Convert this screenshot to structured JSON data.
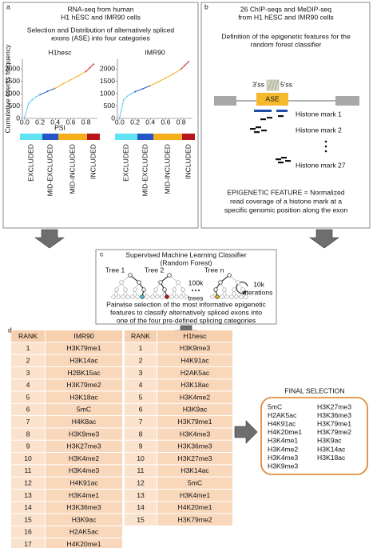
{
  "panel_a": {
    "label": "a",
    "title_lines": [
      "RNA-seq from human",
      "H1 hESC and IMR90 cells"
    ],
    "subtitle_lines": [
      "Selection and Distribution of alternatively spliced",
      "exons (ASE) into four categories"
    ],
    "categories": [
      {
        "name": "EXCLUDED",
        "color": "#5fe3f2"
      },
      {
        "name": "MID-EXCLUDED",
        "color": "#2357c8"
      },
      {
        "name": "MID-INCLUDED",
        "color": "#f5ae1c"
      },
      {
        "name": "INCLUDED",
        "color": "#b8141c"
      }
    ],
    "charts": [
      {
        "type": "line",
        "title": "H1hesc",
        "ylabel": "Cumulative events frequency",
        "xlabel": "PSI",
        "xlim": [
          -0.03,
          0.95
        ],
        "ylim": [
          0,
          2400
        ],
        "xticks": [
          {
            "value": 0,
            "label": "0.0"
          },
          {
            "value": 0.2,
            "label": "0.2"
          },
          {
            "value": 0.4,
            "label": "0.4"
          },
          {
            "value": 0.6,
            "label": "0.6"
          },
          {
            "value": 0.8,
            "label": "0.8"
          }
        ],
        "yticks": [
          0,
          500,
          1000,
          1500,
          2000
        ],
        "series": [
          {
            "color": "#5bc8f0",
            "x": [
              0,
              0.05,
              0.1,
              0.15,
              0.2
            ],
            "values": [
              50,
              600,
              760,
              880,
              960
            ]
          },
          {
            "color": "#2357c8",
            "x": [
              0.2,
              0.3,
              0.4
            ],
            "values": [
              960,
              1100,
              1220
            ]
          },
          {
            "color": "#f5ae1c",
            "x": [
              0.4,
              0.5,
              0.6,
              0.7,
              0.8
            ],
            "values": [
              1220,
              1400,
              1560,
              1720,
              1900
            ]
          },
          {
            "color": "#d2302c",
            "x": [
              0.8,
              0.85,
              0.9
            ],
            "values": [
              1900,
              2050,
              2200
            ]
          }
        ]
      },
      {
        "type": "line",
        "title": "IMR90",
        "xlim": [
          -0.03,
          0.95
        ],
        "ylim": [
          0,
          2400
        ],
        "xticks": [
          {
            "value": 0,
            "label": "0.0"
          },
          {
            "value": 0.2,
            "label": "0.2"
          },
          {
            "value": 0.4,
            "label": "0.4"
          },
          {
            "value": 0.6,
            "label": "0.6"
          },
          {
            "value": 0.8,
            "label": "0.8"
          }
        ],
        "yticks": [
          0,
          500,
          1000,
          1500,
          2000
        ],
        "series": [
          {
            "color": "#5bc8f0",
            "x": [
              0,
              0.05,
              0.1,
              0.15,
              0.2
            ],
            "values": [
              50,
              750,
              900,
              1000,
              1080
            ]
          },
          {
            "color": "#2357c8",
            "x": [
              0.2,
              0.3,
              0.4
            ],
            "values": [
              1080,
              1200,
              1330
            ]
          },
          {
            "color": "#f5ae1c",
            "x": [
              0.4,
              0.5,
              0.6,
              0.7,
              0.8
            ],
            "values": [
              1330,
              1480,
              1630,
              1800,
              2000
            ]
          },
          {
            "color": "#d2302c",
            "x": [
              0.8,
              0.85,
              0.9
            ],
            "values": [
              2000,
              2150,
              2300
            ]
          }
        ]
      }
    ]
  },
  "panel_b": {
    "label": "b",
    "title_lines": [
      "26 ChIP-seqs and MeDIP-seq",
      "from H1 hESC and IMR90 cells"
    ],
    "definition_lines": [
      "Definition of the epigenetic features for the",
      "random forest classifier"
    ],
    "splice_3": "3'ss",
    "splice_5": "5'ss",
    "exon": "ASE",
    "marks": [
      "Histone mark 1",
      "Histone mark 2",
      "Histone mark 27"
    ],
    "feature_lines": [
      "EPIGENETIC FEATURE = Normalized",
      "read coverage of a histone mark at a",
      "specific genomic position along the exon"
    ]
  },
  "panel_c": {
    "label": "c",
    "title_lines": [
      "Supervised Machine Learning Classifier",
      "(Random Forest)"
    ],
    "trees": [
      "Tree 1",
      "Tree 2",
      "Tree n"
    ],
    "tree_count": "100k",
    "tree_word": "trees",
    "iter_count": "10k",
    "iter_word": "iterations",
    "description_lines": [
      "Pairwise selection of the most informative epigenetic",
      "features to classify alternatively spliced exons into",
      "one of the four pre-defined splicing categories"
    ]
  },
  "panel_d": {
    "label": "d",
    "tables": [
      {
        "headers": [
          "RANK",
          "IMR90"
        ],
        "rows": [
          [
            1,
            "H3K79me1"
          ],
          [
            2,
            "H3K14ac"
          ],
          [
            3,
            "H2BK15ac"
          ],
          [
            4,
            "H3K79me2"
          ],
          [
            5,
            "H3K18ac"
          ],
          [
            6,
            "5mC"
          ],
          [
            7,
            "H4K8ac"
          ],
          [
            8,
            "H3K9me3"
          ],
          [
            9,
            "H3K27me3"
          ],
          [
            10,
            "H3K4me2"
          ],
          [
            11,
            "H3K4me3"
          ],
          [
            12,
            "H4K91ac"
          ],
          [
            13,
            "H3K4me1"
          ],
          [
            14,
            "H3K36me3"
          ],
          [
            15,
            "H3K9ac"
          ],
          [
            16,
            "H2AK5ac"
          ],
          [
            17,
            "H4K20me1"
          ]
        ]
      },
      {
        "headers": [
          "RANK",
          "H1hesc"
        ],
        "rows": [
          [
            1,
            "H3K9me3"
          ],
          [
            2,
            "H4K91ac"
          ],
          [
            3,
            "H2AK5ac"
          ],
          [
            4,
            "H3K18ac"
          ],
          [
            5,
            "H3K4me2"
          ],
          [
            6,
            "H3K9ac"
          ],
          [
            7,
            "H3K79me1"
          ],
          [
            8,
            "H3K4me3"
          ],
          [
            9,
            "H3K36me3"
          ],
          [
            10,
            "H3K27me3"
          ],
          [
            11,
            "H3K14ac"
          ],
          [
            12,
            "5mC"
          ],
          [
            13,
            "H3K4me1"
          ],
          [
            14,
            "H4K20me1"
          ],
          [
            15,
            "H3K79me2"
          ]
        ]
      }
    ],
    "final_selection": {
      "title": "FINAL SELECTION",
      "columns": [
        [
          "5mC",
          "H2AK5ac",
          "H4K91ac",
          "H4K20me1",
          "H3K4me1",
          "H3K4me2",
          "H3K4me3",
          "H3K9me3"
        ],
        [
          "H3K27me3",
          "H3K36me3",
          "H3K79me1",
          "H3K79me2",
          "H3K9ac",
          "H3K14ac",
          "H3K18ac"
        ]
      ]
    }
  }
}
